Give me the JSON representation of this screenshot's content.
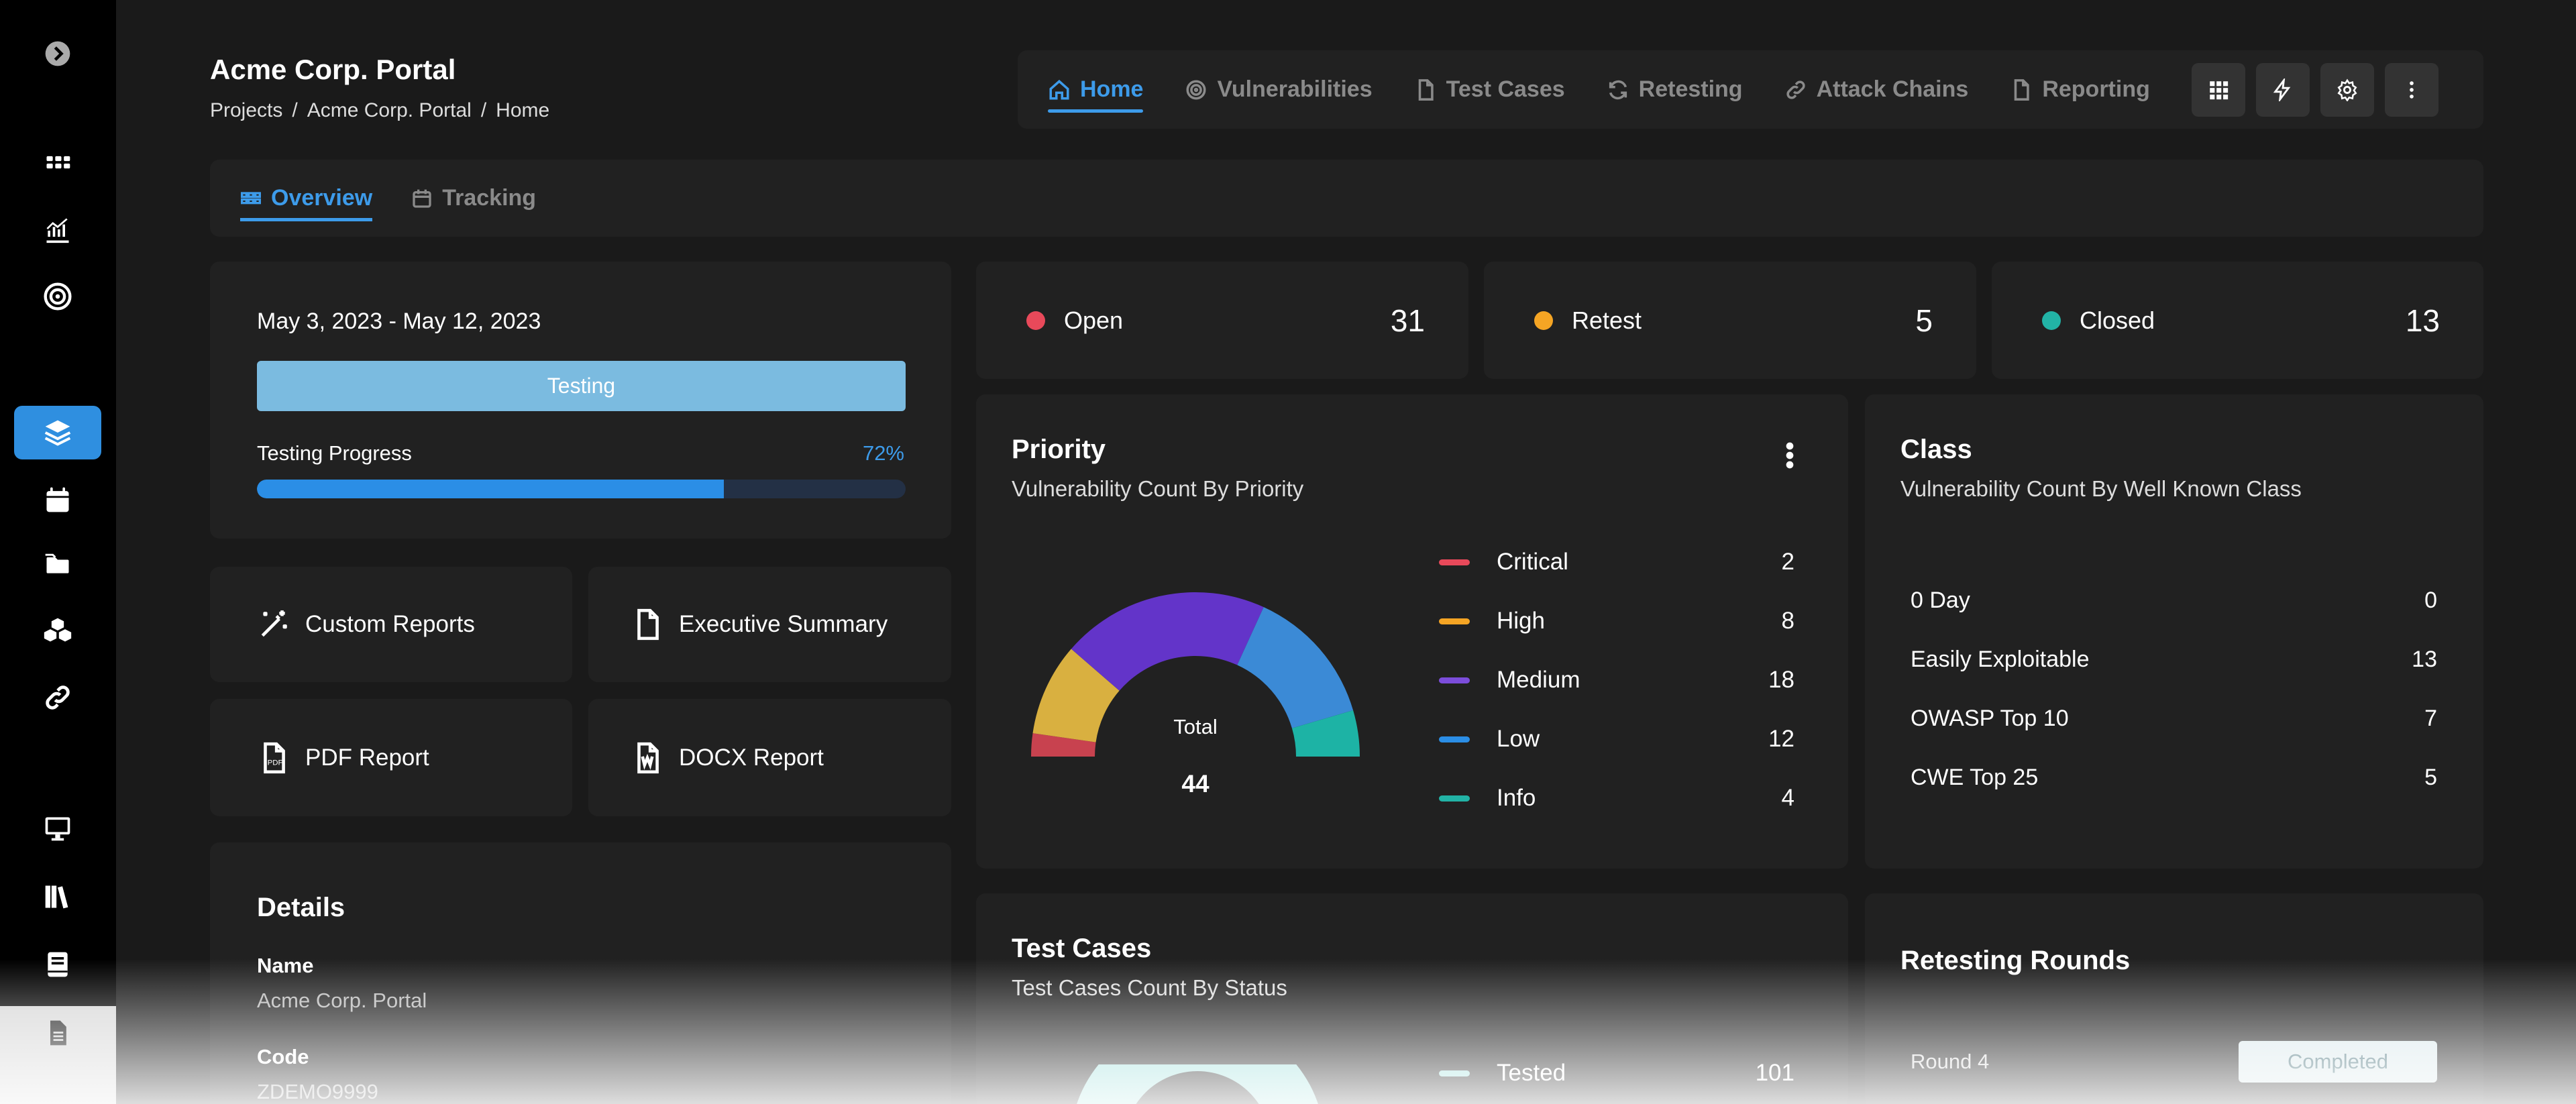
{
  "header": {
    "title": "Acme Corp. Portal",
    "breadcrumb": [
      "Projects",
      "/",
      "Acme Corp. Portal",
      "/",
      "Home"
    ]
  },
  "nav": {
    "tabs": [
      {
        "label": "Home",
        "icon": "home-icon",
        "active": true
      },
      {
        "label": "Vulnerabilities",
        "icon": "target-icon"
      },
      {
        "label": "Test Cases",
        "icon": "file-icon"
      },
      {
        "label": "Retesting",
        "icon": "refresh-icon"
      },
      {
        "label": "Attack Chains",
        "icon": "link-icon"
      },
      {
        "label": "Reporting",
        "icon": "file-icon"
      }
    ],
    "buttons": [
      "apps-icon",
      "bolt-icon",
      "gear-icon",
      "more-vertical-icon"
    ]
  },
  "subtabs": [
    {
      "label": "Overview",
      "icon": "grid-icon",
      "active": true
    },
    {
      "label": "Tracking",
      "icon": "calendar-icon"
    }
  ],
  "project": {
    "date_range": "May 3, 2023 - May 12, 2023",
    "phase": "Testing",
    "progress_label": "Testing Progress",
    "progress_pct_text": "72%",
    "progress_value": 0.72
  },
  "reports": {
    "custom": "Custom Reports",
    "executive": "Executive Summary",
    "pdf": "PDF Report",
    "docx": "DOCX Report"
  },
  "details": {
    "title": "Details",
    "name_label": "Name",
    "name_value": "Acme Corp. Portal",
    "code_label": "Code",
    "code_value": "ZDEMO9999"
  },
  "status": {
    "open": {
      "label": "Open",
      "count": "31",
      "color": "#e8495a"
    },
    "retest": {
      "label": "Retest",
      "count": "5",
      "color": "#f5a524"
    },
    "closed": {
      "label": "Closed",
      "count": "13",
      "color": "#22b3a6"
    }
  },
  "priority": {
    "title": "Priority",
    "subtitle": "Vulnerability Count By Priority",
    "total_label": "Total",
    "total": "44"
  },
  "chart_data": {
    "type": "pie",
    "categories": [
      "Critical",
      "High",
      "Medium",
      "Low",
      "Info"
    ],
    "values": [
      2,
      8,
      18,
      12,
      4
    ],
    "colors": [
      "#e8495a",
      "#f5a524",
      "#7c4ddb",
      "#2b8ee6",
      "#22b3a6"
    ],
    "display_colors": [
      "#c8424f",
      "#d9b040",
      "#6334c9",
      "#3b8ad6",
      "#1db3a5"
    ],
    "value_labels": [
      "2",
      "8",
      "18",
      "12",
      "4"
    ]
  },
  "class": {
    "title": "Class",
    "subtitle": "Vulnerability Count By Well Known Class",
    "rows": [
      {
        "label": "0 Day",
        "value": "0"
      },
      {
        "label": "Easily Exploitable",
        "value": "13"
      },
      {
        "label": "OWASP Top 10",
        "value": "7"
      },
      {
        "label": "CWE Top 25",
        "value": "5"
      }
    ]
  },
  "testcases": {
    "title": "Test Cases",
    "subtitle": "Test Cases Count By Status",
    "legend": [
      {
        "label": "Tested",
        "value": "101",
        "color": "#9fe0dc"
      }
    ]
  },
  "retesting": {
    "title": "Retesting Rounds",
    "rounds": [
      {
        "name": "Round 4",
        "status": "Completed"
      }
    ]
  },
  "sidebar": {
    "items": [
      "chevron-right-icon",
      "apps-icon",
      "chart-icon",
      "target-icon",
      "layers-icon",
      "calendar-icon",
      "folder-icon",
      "cubes-icon",
      "link-icon",
      "monitor-icon",
      "library-icon",
      "book-icon",
      "document-icon"
    ]
  }
}
